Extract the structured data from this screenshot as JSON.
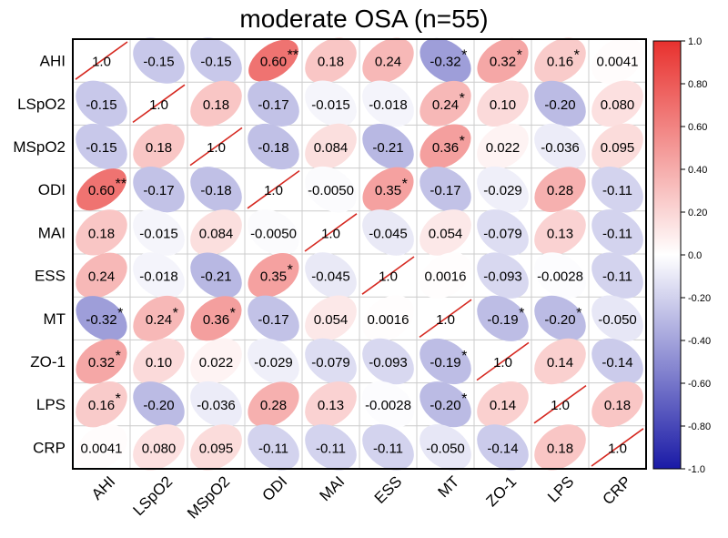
{
  "chart_data": {
    "type": "heatmap",
    "subtype": "ellipse correlation matrix",
    "title": "moderate OSA (n=55)",
    "variables": [
      "AHI",
      "LSpO2",
      "MSpO2",
      "ODI",
      "MAI",
      "ESS",
      "MT",
      "ZO-1",
      "LPS",
      "CRP"
    ],
    "labels": [
      [
        "1.0",
        "-0.15",
        "-0.15",
        "0.60",
        "0.18",
        "0.24",
        "-0.32",
        "0.32",
        "0.16",
        "0.0041"
      ],
      [
        "-0.15",
        "1.0",
        "0.18",
        "-0.17",
        "-0.015",
        "-0.018",
        "0.24",
        "0.10",
        "-0.20",
        "0.080"
      ],
      [
        "-0.15",
        "0.18",
        "1.0",
        "-0.18",
        "0.084",
        "-0.21",
        "0.36",
        "0.022",
        "-0.036",
        "0.095"
      ],
      [
        "0.60",
        "-0.17",
        "-0.18",
        "1.0",
        "-0.0050",
        "0.35",
        "-0.17",
        "-0.029",
        "0.28",
        "-0.11"
      ],
      [
        "0.18",
        "-0.015",
        "0.084",
        "-0.0050",
        "1.0",
        "-0.045",
        "0.054",
        "-0.079",
        "0.13",
        "-0.11"
      ],
      [
        "0.24",
        "-0.018",
        "-0.21",
        "0.35",
        "-0.045",
        "1.0",
        "0.0016",
        "-0.093",
        "-0.0028",
        "-0.11"
      ],
      [
        "-0.32",
        "0.24",
        "0.36",
        "-0.17",
        "0.054",
        "0.0016",
        "1.0",
        "-0.19",
        "-0.20",
        "-0.050"
      ],
      [
        "0.32",
        "0.10",
        "0.022",
        "-0.029",
        "-0.079",
        "-0.093",
        "-0.19",
        "1.0",
        "0.14",
        "-0.14"
      ],
      [
        "0.16",
        "-0.20",
        "-0.036",
        "0.28",
        "0.13",
        "-0.0028",
        "-0.20",
        "0.14",
        "1.0",
        "0.18"
      ],
      [
        "0.0041",
        "0.080",
        "0.095",
        "-0.11",
        "-0.11",
        "-0.11",
        "-0.050",
        "-0.14",
        "0.18",
        "1.0"
      ]
    ],
    "significance": [
      [
        "",
        "",
        "",
        "**",
        "",
        "",
        "*",
        "*",
        "*",
        ""
      ],
      [
        "",
        "",
        "",
        "",
        "",
        "",
        "*",
        "",
        "",
        ""
      ],
      [
        "",
        "",
        "",
        "",
        "",
        "",
        "*",
        "",
        "",
        ""
      ],
      [
        "**",
        "",
        "",
        "",
        "",
        "*",
        "",
        "",
        "",
        ""
      ],
      [
        "",
        "",
        "",
        "",
        "",
        "",
        "",
        "",
        "",
        ""
      ],
      [
        "",
        "",
        "",
        "*",
        "",
        "",
        "",
        "",
        "",
        ""
      ],
      [
        "*",
        "*",
        "*",
        "",
        "",
        "",
        "",
        "*",
        "*",
        ""
      ],
      [
        "*",
        "",
        "",
        "",
        "",
        "",
        "*",
        "",
        "",
        ""
      ],
      [
        "*",
        "",
        "",
        "",
        "",
        "",
        "*",
        "",
        "",
        ""
      ],
      [
        "",
        "",
        "",
        "",
        "",
        "",
        "",
        "",
        "",
        ""
      ]
    ],
    "colorbar": {
      "range": [
        -1.0,
        1.0
      ],
      "ticks": [
        "1.0",
        "0.80",
        "0.60",
        "0.40",
        "0.20",
        "0.0",
        "-0.20",
        "-0.40",
        "-0.60",
        "-0.80",
        "-1.0"
      ],
      "low_color": "#1a1aa6",
      "mid_color": "#ffffff",
      "high_color": "#e8312e"
    },
    "diagonal_line_color": "#d62a22"
  }
}
